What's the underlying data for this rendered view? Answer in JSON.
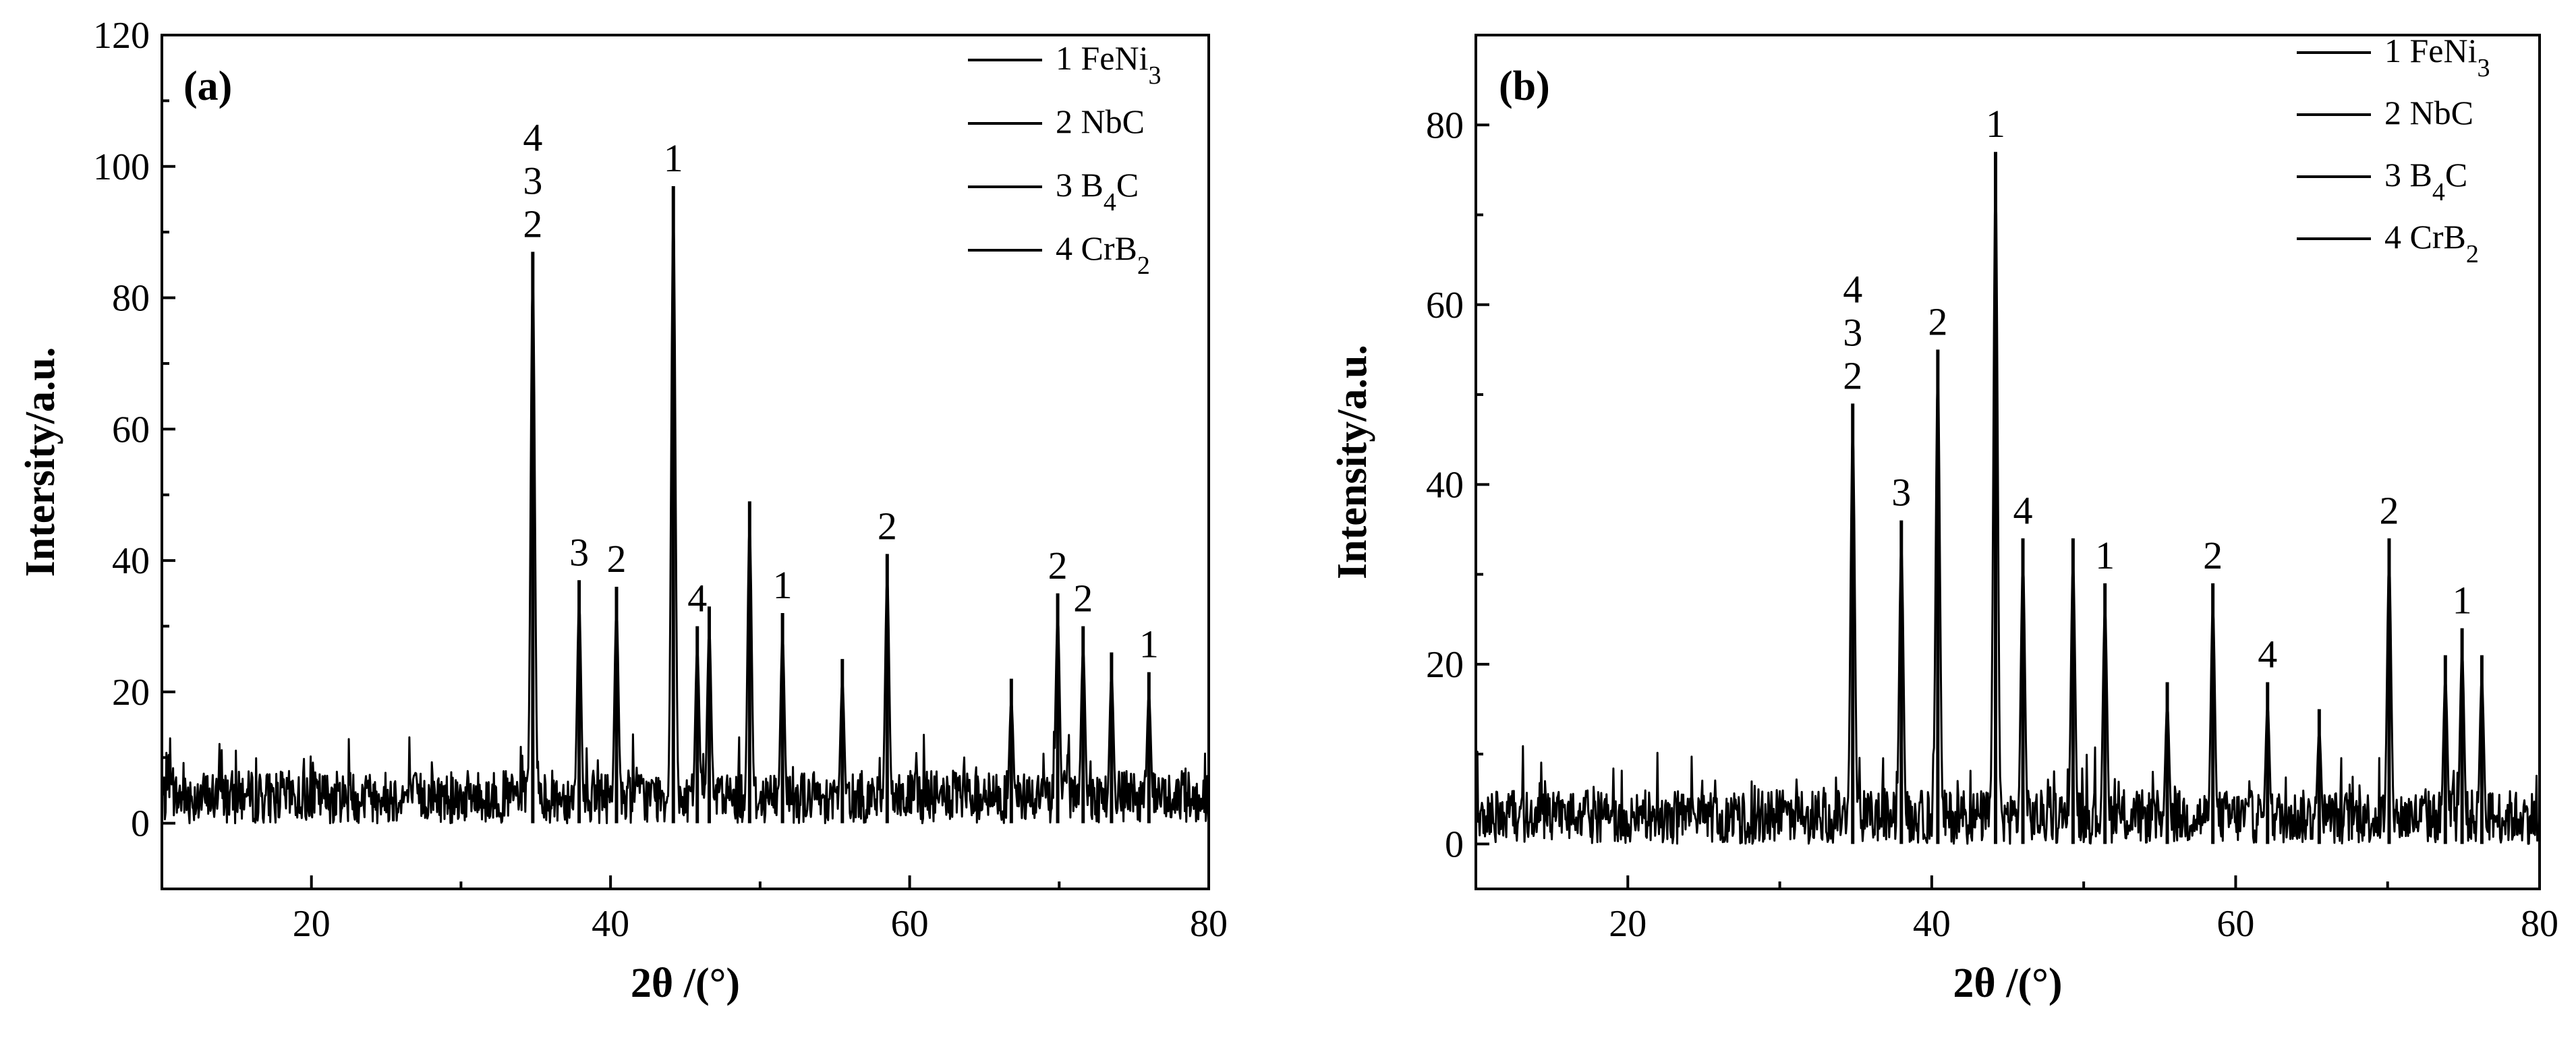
{
  "chart_data": [
    {
      "type": "line",
      "panel_label": "(a)",
      "xlabel": "2θ /(°)",
      "ylabel": "Intersity/a.u.",
      "xlim": [
        10,
        80
      ],
      "ylim": [
        -10,
        120
      ],
      "xticks": [
        "20",
        "40",
        "60",
        "80"
      ],
      "yticks": [
        "0",
        "20",
        "40",
        "60",
        "80",
        "100",
        "120"
      ],
      "legend": [
        "1 FeNi3",
        "2 NbC",
        "3 B4C",
        "4 CrB2"
      ],
      "legend_position": "top-right",
      "peaks": [
        {
          "x": 34.8,
          "y": 87,
          "label": "2\n3\n4"
        },
        {
          "x": 37.9,
          "y": 37,
          "label": "3"
        },
        {
          "x": 40.4,
          "y": 36,
          "label": "2"
        },
        {
          "x": 44.2,
          "y": 97,
          "label": "1"
        },
        {
          "x": 45.8,
          "y": 30,
          "label": "4"
        },
        {
          "x": 46.6,
          "y": 33,
          "label": ""
        },
        {
          "x": 49.3,
          "y": 49,
          "label": ""
        },
        {
          "x": 51.5,
          "y": 32,
          "label": "1"
        },
        {
          "x": 55.5,
          "y": 25,
          "label": ""
        },
        {
          "x": 58.5,
          "y": 41,
          "label": "2"
        },
        {
          "x": 66.8,
          "y": 22,
          "label": ""
        },
        {
          "x": 69.9,
          "y": 35,
          "label": "2"
        },
        {
          "x": 71.6,
          "y": 30,
          "label": "2"
        },
        {
          "x": 73.5,
          "y": 26,
          "label": ""
        },
        {
          "x": 76.0,
          "y": 23,
          "label": "1"
        }
      ]
    },
    {
      "type": "line",
      "panel_label": "(b)",
      "xlabel": "2θ /(°)",
      "ylabel": "Intensity/a.u.",
      "xlim": [
        10,
        80
      ],
      "ylim": [
        -5,
        90
      ],
      "xticks": [
        "20",
        "40",
        "60",
        "80"
      ],
      "yticks": [
        "0",
        "20",
        "40",
        "60",
        "80"
      ],
      "legend": [
        "1 FeNi3",
        "2 NbC",
        "3 B4C",
        "4 CrB2"
      ],
      "legend_position": "top-right",
      "peaks": [
        {
          "x": 34.8,
          "y": 49,
          "label": "2\n3\n4"
        },
        {
          "x": 38.0,
          "y": 36,
          "label": "3"
        },
        {
          "x": 40.4,
          "y": 55,
          "label": "2"
        },
        {
          "x": 44.2,
          "y": 77,
          "label": "1"
        },
        {
          "x": 46.0,
          "y": 34,
          "label": "4"
        },
        {
          "x": 49.3,
          "y": 34,
          "label": ""
        },
        {
          "x": 51.4,
          "y": 29,
          "label": "1"
        },
        {
          "x": 55.5,
          "y": 18,
          "label": ""
        },
        {
          "x": 58.5,
          "y": 29,
          "label": "2"
        },
        {
          "x": 62.1,
          "y": 18,
          "label": "4"
        },
        {
          "x": 65.5,
          "y": 15,
          "label": ""
        },
        {
          "x": 70.1,
          "y": 34,
          "label": "2"
        },
        {
          "x": 73.8,
          "y": 21,
          "label": ""
        },
        {
          "x": 74.9,
          "y": 24,
          "label": "1"
        },
        {
          "x": 76.2,
          "y": 21,
          "label": ""
        }
      ]
    }
  ]
}
